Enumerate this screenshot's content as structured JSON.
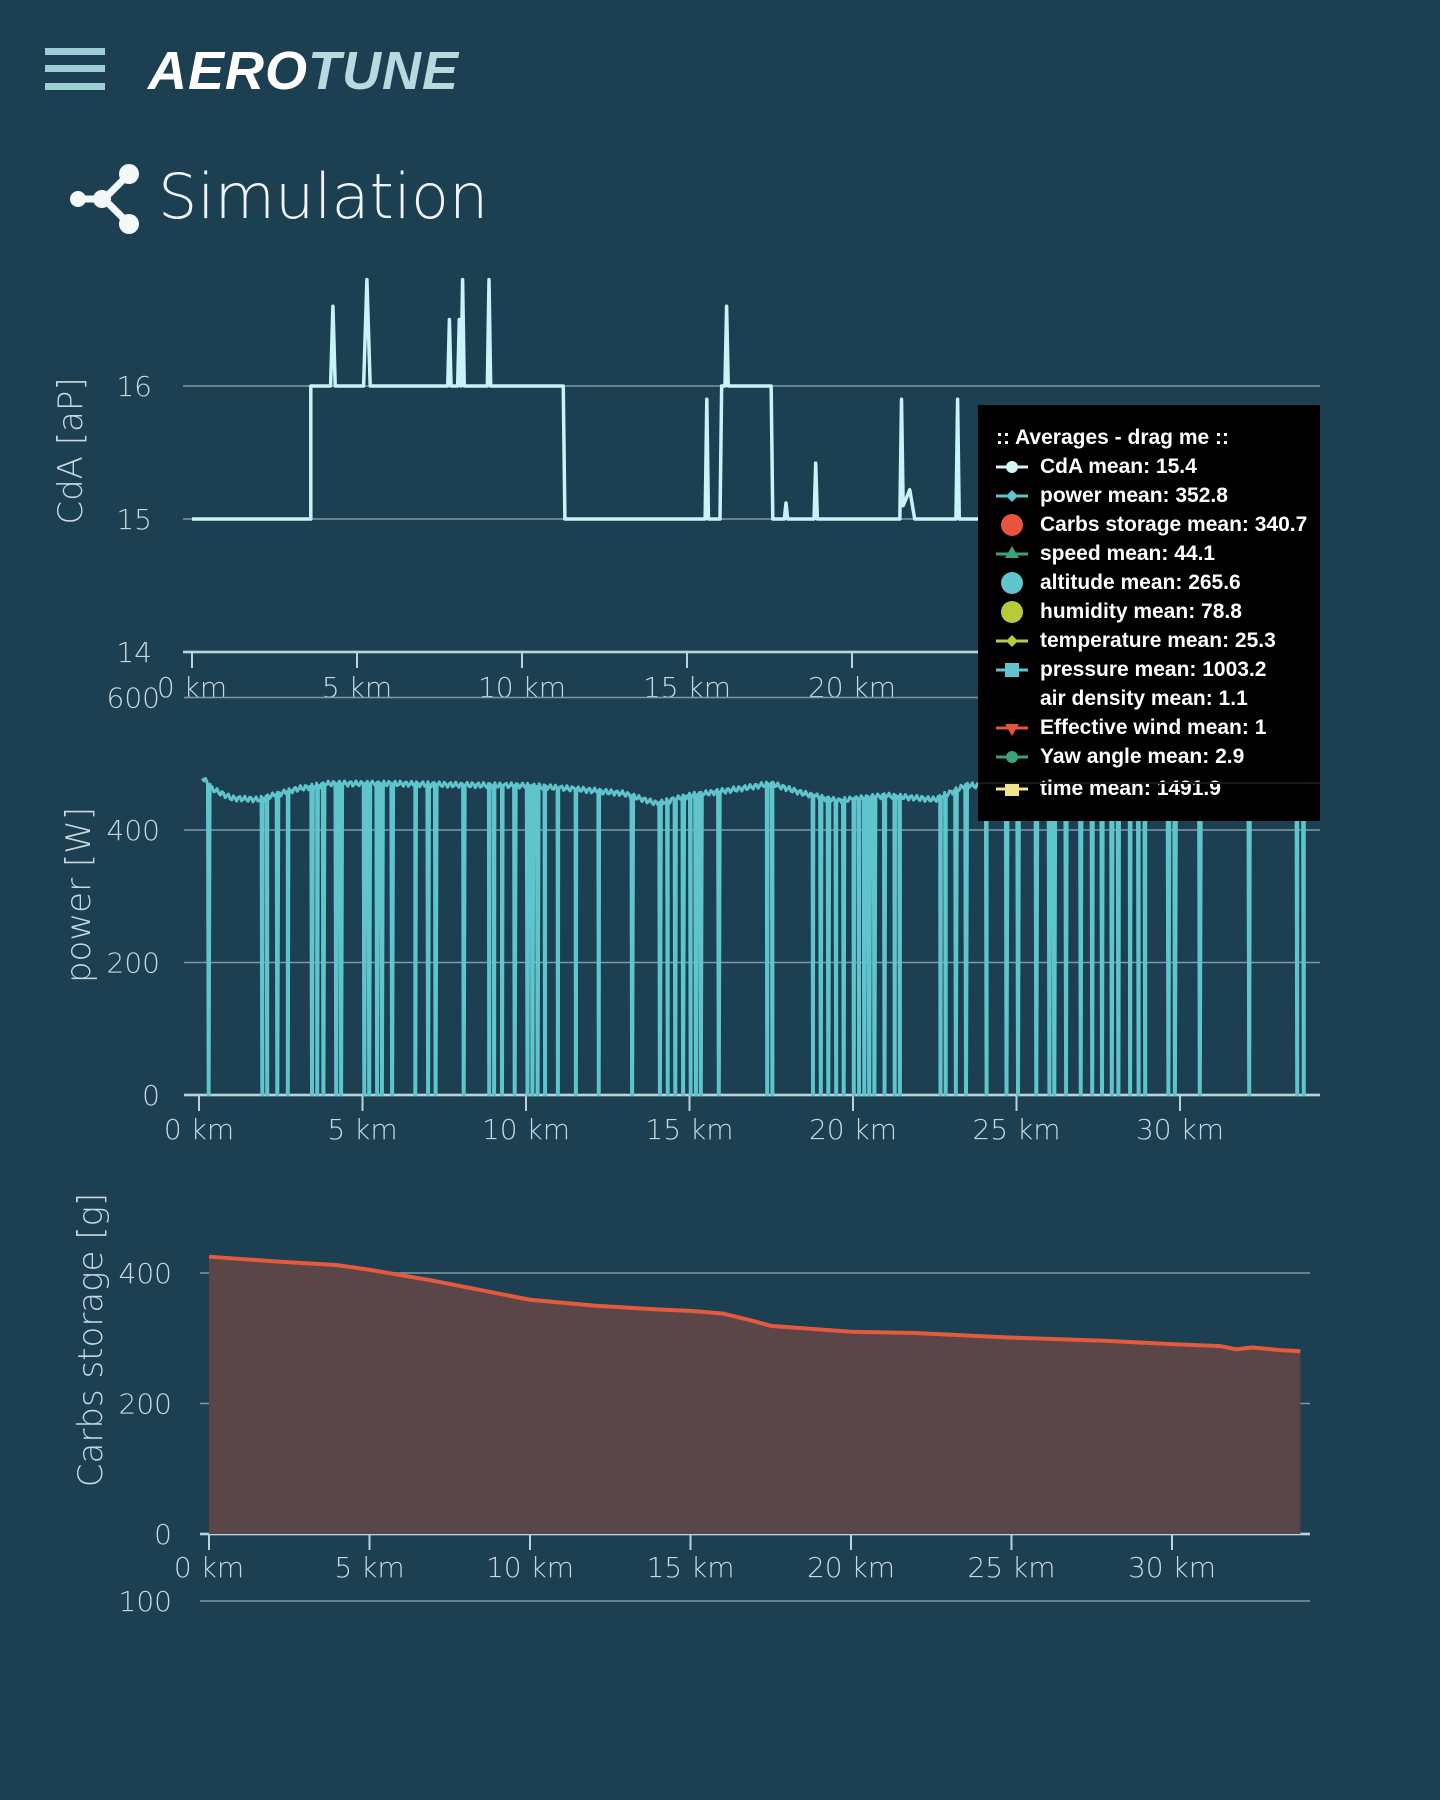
{
  "header": {
    "logo_part1": "AERO",
    "logo_part2": "TUNE",
    "menu_icon": "hamburger-icon"
  },
  "page": {
    "title": "Simulation",
    "icon": "share-nodes-icon"
  },
  "colors": {
    "background": "#1c3f52",
    "cda": "#c8f4f8",
    "power": "#5fc4cc",
    "carbs_line": "#e45a3c",
    "carbs_fill": "#5a4649",
    "grid": "#7f9aa6"
  },
  "legend": {
    "title": ":: Averages - drag me ::",
    "items": [
      {
        "label": "CdA mean: 15.4",
        "marker": "circle",
        "color": "#d6f5f8"
      },
      {
        "label": "power mean: 352.8",
        "marker": "diamond",
        "color": "#5fc4cc"
      },
      {
        "label": "Carbs storage mean: 340.7",
        "marker": "big-circle",
        "color": "#e8553d"
      },
      {
        "label": "speed mean: 44.1",
        "marker": "triangle-up",
        "color": "#3aa37a"
      },
      {
        "label": "altitude mean: 265.6",
        "marker": "big-circle",
        "color": "#5fc4cc"
      },
      {
        "label": "humidity mean: 78.8",
        "marker": "big-circle",
        "color": "#b8c93a"
      },
      {
        "label": "temperature mean: 25.3",
        "marker": "diamond",
        "color": "#b8c93a"
      },
      {
        "label": "pressure mean: 1003.2",
        "marker": "square",
        "color": "#5fc4cc"
      },
      {
        "label": "air density mean: 1.1",
        "marker": "none",
        "color": ""
      },
      {
        "label": "Effective wind mean: 1",
        "marker": "triangle-down",
        "color": "#e8553d"
      },
      {
        "label": "Yaw angle mean: 2.9",
        "marker": "circle",
        "color": "#3aa37a"
      },
      {
        "label": "time mean: 1491.9",
        "marker": "square",
        "color": "#f2e38a"
      }
    ]
  },
  "chart_data": [
    {
      "type": "line",
      "ylabel": "CdA [aP]",
      "xlabel": "",
      "ylim": [
        14,
        17
      ],
      "xlim": [
        0,
        34
      ],
      "yticks": [
        "14",
        "15",
        "16"
      ],
      "ytick_values": [
        14,
        15,
        16
      ],
      "xticks": [
        "0 km",
        "5 km",
        "10 km",
        "15 km",
        "20 km"
      ],
      "xtick_values": [
        0,
        5,
        10,
        15,
        20
      ],
      "grid": true,
      "series": [
        {
          "x": [
            0,
            3.6,
            3.6,
            4.2,
            4.27,
            4.34,
            5.2,
            5.3,
            5.4,
            7.75,
            7.8,
            7.85,
            8.05,
            8.1,
            8.15,
            8.2,
            8.25,
            8.95,
            9.0,
            9.05,
            11.25,
            11.3,
            15.55,
            15.6,
            15.65,
            16.0,
            16.05,
            16.15,
            16.2,
            16.25,
            17.55,
            17.6,
            17.95,
            18.0,
            18.05,
            18.85,
            18.9,
            18.95,
            21.45,
            21.5,
            21.55,
            21.75,
            21.9,
            23.15,
            23.2,
            23.25,
            34
          ],
          "y": [
            15,
            15,
            16,
            16,
            16.6,
            16,
            16,
            16.8,
            16,
            16,
            16.5,
            16,
            16,
            16.5,
            16,
            16.8,
            16,
            16,
            16.8,
            16,
            16,
            15,
            15,
            15.9,
            15,
            15,
            16,
            16,
            16.6,
            16,
            16,
            15,
            15,
            15.12,
            15,
            15,
            15.42,
            15,
            15,
            15.9,
            15.1,
            15.22,
            15,
            15,
            15.9,
            15,
            15
          ]
        }
      ]
    },
    {
      "type": "line",
      "ylabel": "power [W]",
      "xlabel": "",
      "ylim": [
        0,
        600
      ],
      "xlim": [
        0,
        34
      ],
      "yticks": [
        "0",
        "200",
        "400",
        "600"
      ],
      "ytick_values": [
        0,
        200,
        400,
        600
      ],
      "xticks": [
        "0 km",
        "5 km",
        "10 km",
        "15 km",
        "20 km",
        "25 km",
        "30 km"
      ],
      "xtick_values": [
        0,
        5,
        10,
        15,
        20,
        25,
        30
      ],
      "grid": true,
      "baseline": {
        "x": [
          0.1,
          0.4,
          1.0,
          1.8,
          3.0,
          4.0,
          6.0,
          8.0,
          10.0,
          11.5,
          13.0,
          14.0,
          15.0,
          16.5,
          17.5,
          18.5,
          19.5,
          21.0,
          22.5,
          23.5,
          25,
          27,
          29,
          31,
          33,
          33.9
        ],
        "y": [
          480,
          462,
          448,
          446,
          462,
          470,
          470,
          468,
          467,
          462,
          455,
          440,
          452,
          462,
          470,
          455,
          444,
          452,
          446,
          468,
          460,
          458,
          455,
          456,
          458,
          455
        ]
      },
      "dropouts_km": [
        0.28,
        1.92,
        2.07,
        2.38,
        2.7,
        3.44,
        3.6,
        3.79,
        4.18,
        4.33,
        5.04,
        5.19,
        5.43,
        5.58,
        5.89,
        6.6,
        6.99,
        7.22,
        8.08,
        8.86,
        9.01,
        9.25,
        9.64,
        10.03,
        10.18,
        10.34,
        10.57,
        10.96,
        11.51,
        12.21,
        13.23,
        14.08,
        14.32,
        14.55,
        14.79,
        15.02,
        15.18,
        15.33,
        15.88,
        17.36,
        17.52,
        18.76,
        19.0,
        19.23,
        19.47,
        19.7,
        20.01,
        20.17,
        20.33,
        20.48,
        20.64,
        20.95,
        21.26,
        21.42,
        22.66,
        22.82,
        23.13,
        23.44,
        24.07,
        24.68,
        25.03,
        25.59,
        25.99,
        26.14,
        26.5,
        26.95,
        27.3,
        27.6,
        27.9,
        28.1,
        28.46,
        28.72,
        28.92,
        29.63,
        29.83,
        30.59,
        32.1,
        33.57,
        33.77
      ]
    },
    {
      "type": "area",
      "ylabel": "Carbs storage [g]",
      "xlabel": "",
      "ylim": [
        0,
        450
      ],
      "xlim": [
        0,
        34
      ],
      "yticks": [
        "0",
        "200",
        "400"
      ],
      "ytick_values": [
        0,
        200,
        400
      ],
      "xticks": [
        "0 km",
        "5 km",
        "10 km",
        "15 km",
        "20 km",
        "25 km",
        "30 km"
      ],
      "xtick_values": [
        0,
        5,
        10,
        15,
        20,
        25,
        30
      ],
      "grid": true,
      "series": [
        {
          "x": [
            0,
            2,
            4,
            5,
            7,
            10,
            12,
            14,
            15,
            16,
            17,
            17.5,
            20,
            22,
            25,
            28,
            30,
            31.5,
            32,
            32.5,
            33.3,
            34
          ],
          "y": [
            425,
            418,
            412,
            405,
            388,
            359,
            350,
            344,
            342,
            338,
            326,
            319,
            310,
            308,
            301,
            296,
            291,
            288,
            283,
            286,
            282,
            280
          ]
        }
      ]
    },
    {
      "type": "line",
      "yticks": [
        "100"
      ],
      "ytick_values": [
        100
      ]
    }
  ]
}
